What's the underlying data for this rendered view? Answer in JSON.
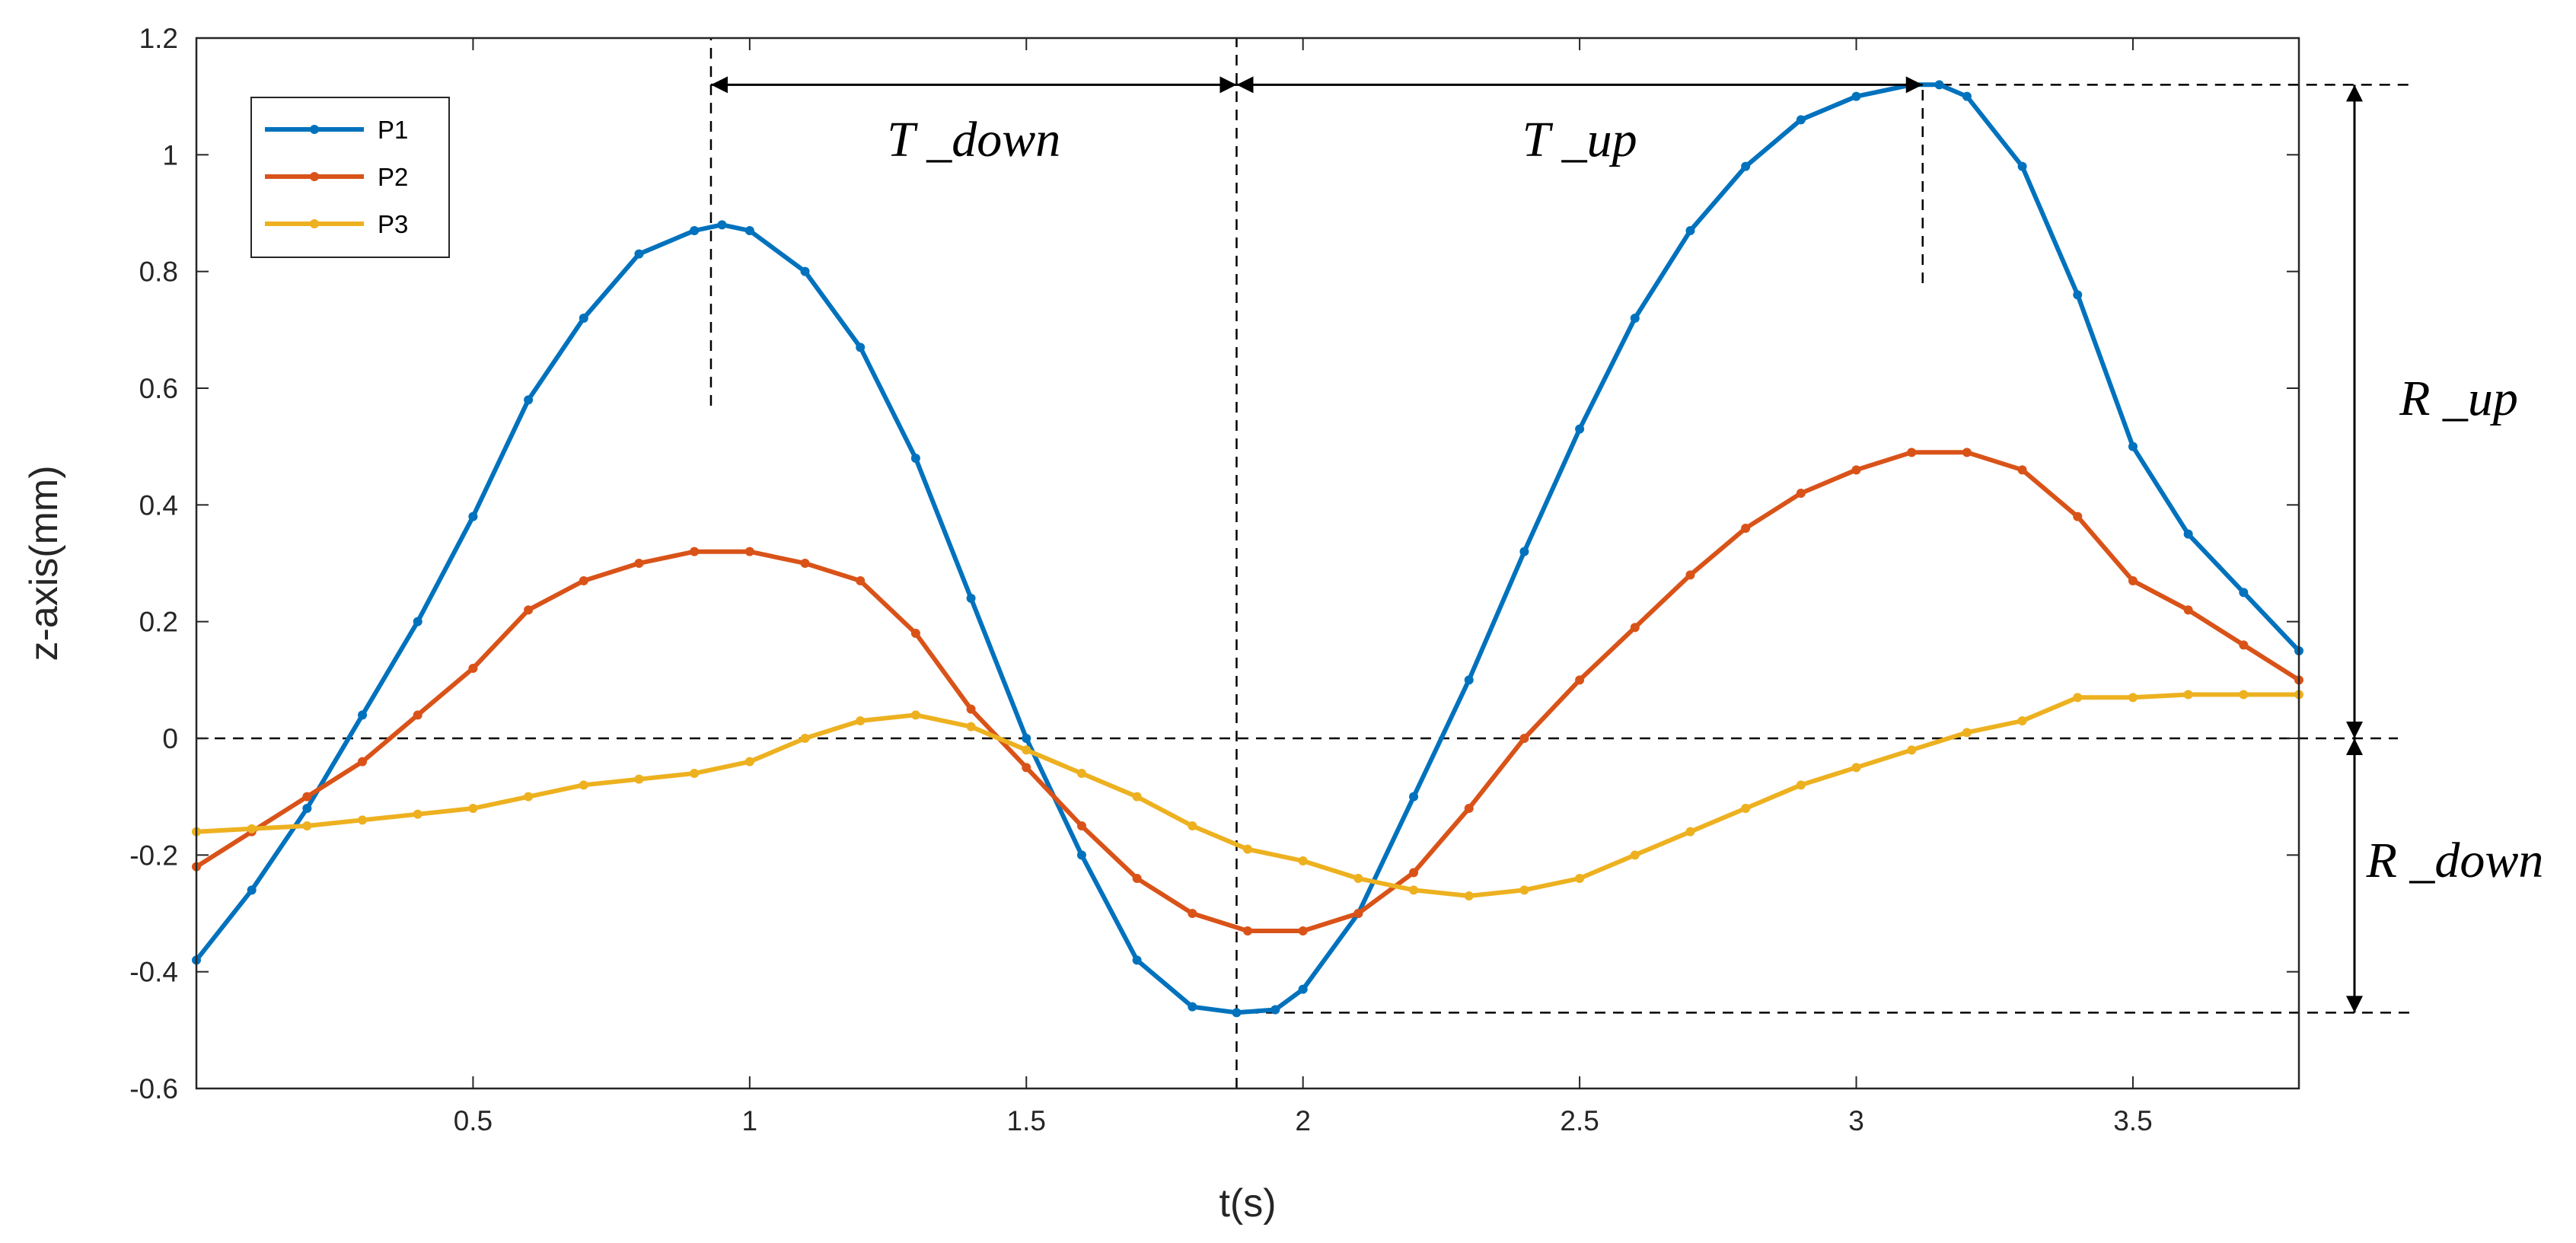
{
  "chart_data": {
    "type": "line",
    "xlabel": "t(s)",
    "ylabel": "z-axis(mm)",
    "xlim": [
      0.0,
      3.8
    ],
    "ylim": [
      -0.6,
      1.2
    ],
    "xticks": [
      0.5,
      1,
      1.5,
      2,
      2.5,
      3,
      3.5
    ],
    "xtick_labels": [
      "0.5",
      "1",
      "1.5",
      "2",
      "2.5",
      "3",
      "3.5"
    ],
    "yticks": [
      -0.6,
      -0.4,
      -0.2,
      0,
      0.2,
      0.4,
      0.6,
      0.8,
      1.0,
      1.2
    ],
    "ytick_labels": [
      "-0.6",
      "-0.4",
      "-0.2",
      "0",
      "0.2",
      "0.4",
      "0.6",
      "0.8",
      "1",
      "1.2"
    ],
    "grid": false,
    "legend_position": "top-left",
    "series": [
      {
        "name": "P1",
        "color": "#0072BD",
        "x": [
          0.0,
          0.1,
          0.2,
          0.3,
          0.4,
          0.5,
          0.6,
          0.7,
          0.8,
          0.9,
          0.95,
          1.0,
          1.1,
          1.2,
          1.3,
          1.4,
          1.5,
          1.6,
          1.7,
          1.8,
          1.88,
          1.95,
          2.0,
          2.1,
          2.2,
          2.3,
          2.4,
          2.5,
          2.6,
          2.7,
          2.8,
          2.9,
          3.0,
          3.1,
          3.15,
          3.2,
          3.3,
          3.4,
          3.5,
          3.6,
          3.7,
          3.8
        ],
        "y": [
          -0.38,
          -0.26,
          -0.12,
          0.04,
          0.2,
          0.38,
          0.58,
          0.72,
          0.83,
          0.87,
          0.88,
          0.87,
          0.8,
          0.67,
          0.48,
          0.24,
          0.0,
          -0.2,
          -0.38,
          -0.46,
          -0.47,
          -0.465,
          -0.43,
          -0.3,
          -0.1,
          0.1,
          0.32,
          0.53,
          0.72,
          0.87,
          0.98,
          1.06,
          1.1,
          1.12,
          1.12,
          1.1,
          0.98,
          0.76,
          0.5,
          0.35,
          0.25,
          0.15
        ]
      },
      {
        "name": "P2",
        "color": "#D95319",
        "x": [
          0.0,
          0.1,
          0.2,
          0.3,
          0.4,
          0.5,
          0.6,
          0.7,
          0.8,
          0.9,
          1.0,
          1.1,
          1.2,
          1.3,
          1.4,
          1.5,
          1.6,
          1.7,
          1.8,
          1.9,
          2.0,
          2.1,
          2.2,
          2.3,
          2.4,
          2.5,
          2.6,
          2.7,
          2.8,
          2.9,
          3.0,
          3.1,
          3.2,
          3.3,
          3.4,
          3.5,
          3.6,
          3.7,
          3.8
        ],
        "y": [
          -0.22,
          -0.16,
          -0.1,
          -0.04,
          0.04,
          0.12,
          0.22,
          0.27,
          0.3,
          0.32,
          0.32,
          0.3,
          0.27,
          0.18,
          0.05,
          -0.05,
          -0.15,
          -0.24,
          -0.3,
          -0.33,
          -0.33,
          -0.3,
          -0.23,
          -0.12,
          0.0,
          0.1,
          0.19,
          0.28,
          0.36,
          0.42,
          0.46,
          0.49,
          0.49,
          0.46,
          0.38,
          0.27,
          0.22,
          0.16,
          0.1
        ]
      },
      {
        "name": "P3",
        "color": "#EDB120",
        "x": [
          0.0,
          0.1,
          0.2,
          0.3,
          0.4,
          0.5,
          0.6,
          0.7,
          0.8,
          0.9,
          1.0,
          1.1,
          1.2,
          1.3,
          1.4,
          1.5,
          1.6,
          1.7,
          1.8,
          1.9,
          2.0,
          2.1,
          2.2,
          2.3,
          2.4,
          2.5,
          2.6,
          2.7,
          2.8,
          2.9,
          3.0,
          3.1,
          3.2,
          3.3,
          3.4,
          3.5,
          3.6,
          3.7,
          3.8
        ],
        "y": [
          -0.16,
          -0.155,
          -0.15,
          -0.14,
          -0.13,
          -0.12,
          -0.1,
          -0.08,
          -0.07,
          -0.06,
          -0.04,
          0.0,
          0.03,
          0.04,
          0.02,
          -0.02,
          -0.06,
          -0.1,
          -0.15,
          -0.19,
          -0.21,
          -0.24,
          -0.26,
          -0.27,
          -0.26,
          -0.24,
          -0.2,
          -0.16,
          -0.12,
          -0.08,
          -0.05,
          -0.02,
          0.01,
          0.03,
          0.07,
          0.07,
          0.075,
          0.075,
          0.075
        ]
      }
    ],
    "annotations": [
      {
        "text": "T _down",
        "from_x": 0.93,
        "to_x": 1.88,
        "y": 1.12
      },
      {
        "text": "T _up",
        "from_x": 1.88,
        "to_x": 3.12,
        "y": 1.12
      },
      {
        "text": "R _up",
        "from_y": 0.0,
        "to_y": 1.12
      },
      {
        "text": "R _down",
        "from_y": -0.47,
        "to_y": 0.0
      }
    ],
    "reference_lines": [
      {
        "orientation": "vertical",
        "x": 0.93,
        "y_from": 0.57,
        "y_to": 1.2
      },
      {
        "orientation": "vertical",
        "x": 1.88,
        "y_from": -0.6,
        "y_to": 1.2
      },
      {
        "orientation": "vertical",
        "x": 3.12,
        "y_from": 0.78,
        "y_to": 1.12
      },
      {
        "orientation": "horizontal",
        "y": 0.0
      },
      {
        "orientation": "horizontal",
        "y": 1.12,
        "x_from": 3.12
      },
      {
        "orientation": "horizontal",
        "y": -0.47,
        "x_from": 1.9
      }
    ]
  }
}
